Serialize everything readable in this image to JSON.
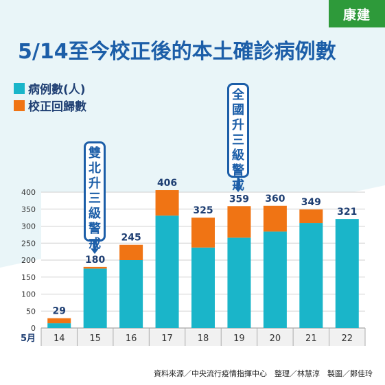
{
  "brand": "康建",
  "title": "5/14至今校正後的本土確診病例數",
  "legend": [
    {
      "label": "病例數(人)",
      "color": "#1ab5c9"
    },
    {
      "label": "校正回歸數",
      "color": "#f07414"
    }
  ],
  "callouts": {
    "first": "雙北升三級警戒",
    "second": "全國升三級警戒"
  },
  "source": "資料來源／中央流行疫情指揮中心　整理／林慧淳　製圖／鄭佳玲",
  "chart_data": {
    "type": "bar",
    "stacked": true,
    "x_prefix": "5月",
    "categories": [
      "14",
      "15",
      "16",
      "17",
      "18",
      "19",
      "20",
      "21",
      "22"
    ],
    "series": [
      {
        "name": "病例數(人)",
        "color": "#1ab5c9",
        "values": [
          14,
          175,
          200,
          331,
          237,
          266,
          284,
          309,
          321
        ]
      },
      {
        "name": "校正回歸數",
        "color": "#f07414",
        "values": [
          15,
          5,
          45,
          75,
          88,
          93,
          76,
          40,
          0
        ]
      }
    ],
    "totals": [
      "29",
      "180",
      "245",
      "406",
      "325",
      "359",
      "360",
      "349",
      "321"
    ],
    "yticks": [
      "0",
      "50",
      "100",
      "150",
      "200",
      "250",
      "300",
      "350",
      "400"
    ],
    "ylim": [
      0,
      400
    ],
    "grid": true
  }
}
